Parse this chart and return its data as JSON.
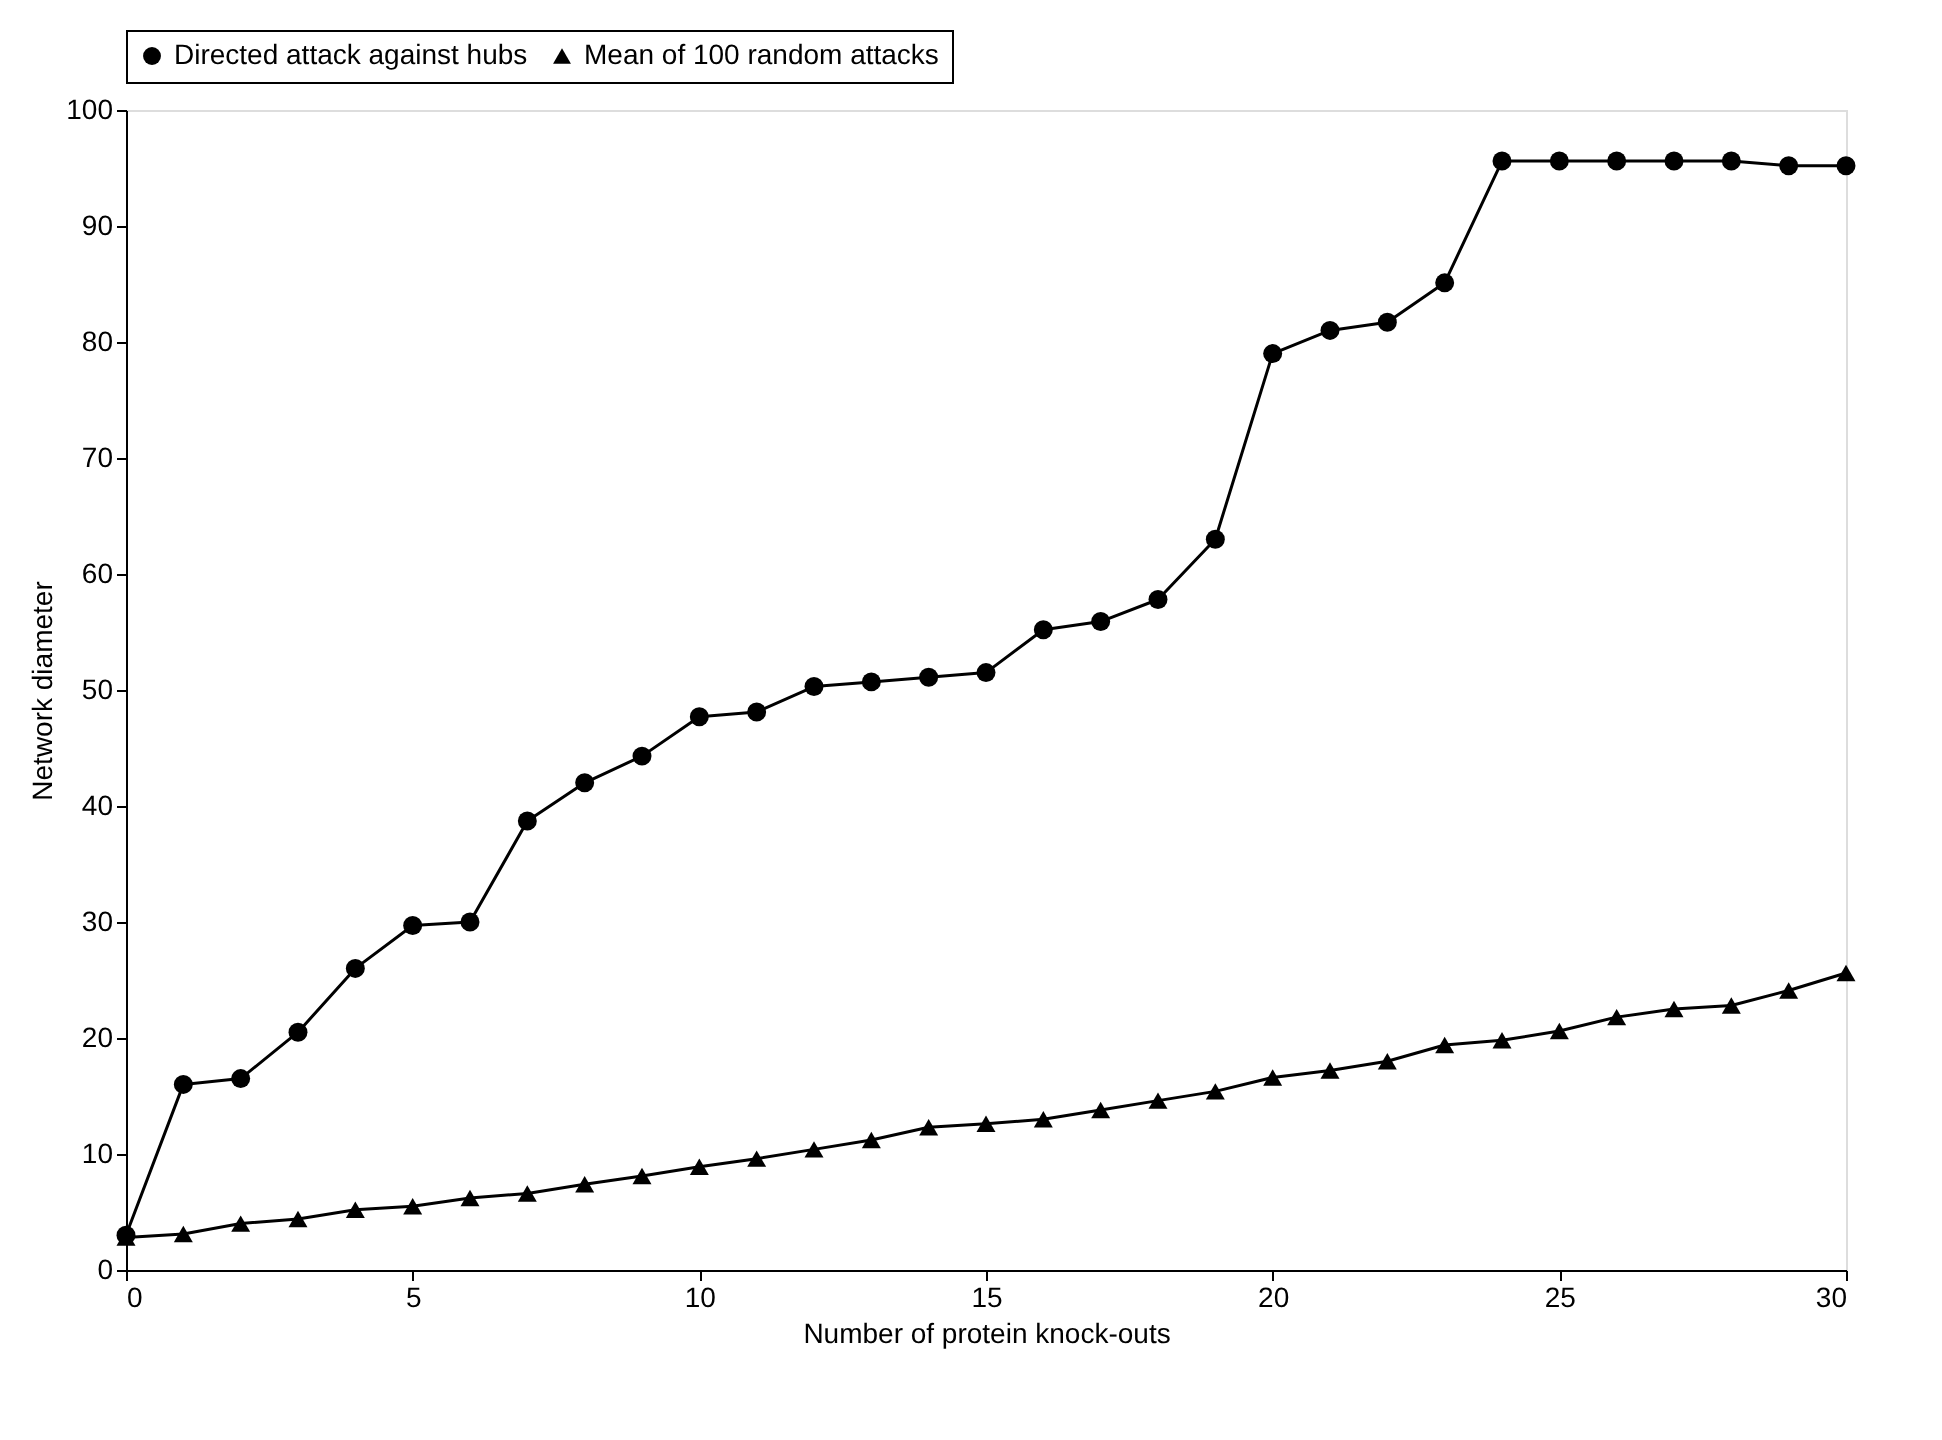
{
  "chart_data": {
    "type": "line",
    "xlabel": "Number of protein knock-outs",
    "ylabel": "Network diameter",
    "x": [
      0,
      1,
      2,
      3,
      4,
      5,
      6,
      7,
      8,
      9,
      10,
      11,
      12,
      13,
      14,
      15,
      16,
      17,
      18,
      19,
      20,
      21,
      22,
      23,
      24,
      25,
      26,
      27,
      28,
      29,
      30
    ],
    "series": [
      {
        "name": "Directed attack against hubs",
        "color": "#000000",
        "marker": "circle",
        "values": [
          3,
          16,
          16.5,
          20.5,
          26,
          29.7,
          30,
          38.7,
          42,
          44.3,
          47.7,
          48.1,
          50.3,
          50.7,
          51.1,
          51.5,
          55.2,
          55.9,
          57.8,
          63,
          79,
          81,
          81.7,
          85.1,
          95.6,
          95.6,
          95.6,
          95.6,
          95.6,
          95.2,
          95.2
        ]
      },
      {
        "name": "Mean of 100 random attacks",
        "color": "#000000",
        "marker": "triangle",
        "values": [
          2.8,
          3.1,
          4,
          4.4,
          5.2,
          5.5,
          6.2,
          6.6,
          7.4,
          8.1,
          8.9,
          9.6,
          10.4,
          11.2,
          12.3,
          12.6,
          13,
          13.8,
          14.6,
          15.4,
          16.6,
          17.2,
          18,
          19.4,
          19.8,
          20.6,
          21.8,
          22.5,
          22.8,
          24.1,
          25.6
        ]
      }
    ],
    "xlim": [
      0,
      30
    ],
    "xticks": [
      0,
      5,
      10,
      15,
      20,
      25,
      30
    ],
    "ylim": [
      0,
      100
    ],
    "yticks": [
      0,
      10,
      20,
      30,
      40,
      50,
      60,
      70,
      80,
      90,
      100
    ],
    "grid": false,
    "legend": "top",
    "line_style": "solid"
  }
}
